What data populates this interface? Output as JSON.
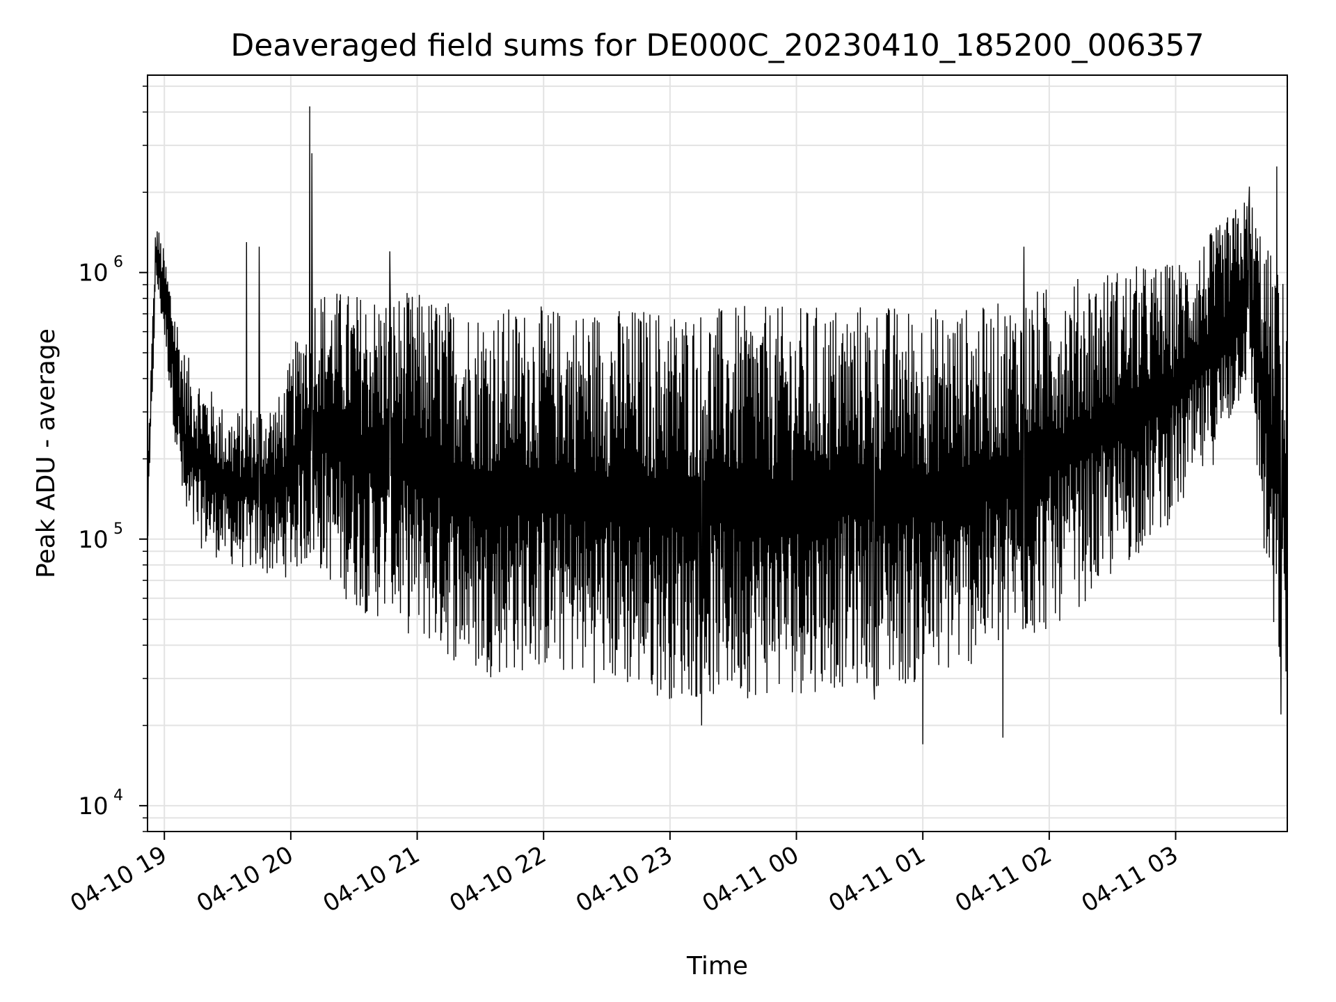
{
  "chart_data": {
    "type": "line",
    "title": "Deaveraged field sums for DE000C_20230410_185200_006357",
    "xlabel": "Time",
    "ylabel": "Peak ADU - average",
    "yscale": "log",
    "ylim": [
      8000,
      5500000
    ],
    "xlim": [
      "2023-04-10 18:52",
      "2023-04-11 03:53"
    ],
    "grid": true,
    "x_tick_labels": [
      "04-10 19",
      "04-10 20",
      "04-10 21",
      "04-10 22",
      "04-10 23",
      "04-11 00",
      "04-11 01",
      "04-11 02",
      "04-11 03"
    ],
    "y_tick_labels": [
      {
        "base": "10",
        "exp": "4",
        "value": 10000
      },
      {
        "base": "10",
        "exp": "5",
        "value": 100000
      },
      {
        "base": "10",
        "exp": "6",
        "value": 1000000
      }
    ],
    "series": [
      {
        "color": "#000000",
        "envelope": [
          {
            "x": "2023-04-10 18:52",
            "low": 80000,
            "high": 200000
          },
          {
            "x": "2023-04-10 18:56",
            "low": 900000,
            "high": 1600000
          },
          {
            "x": "2023-04-10 19:00",
            "low": 550000,
            "high": 1200000
          },
          {
            "x": "2023-04-10 19:10",
            "low": 100000,
            "high": 500000
          },
          {
            "x": "2023-04-10 19:30",
            "low": 80000,
            "high": 300000
          },
          {
            "x": "2023-04-10 19:55",
            "low": 70000,
            "high": 350000
          },
          {
            "x": "2023-04-10 20:10",
            "low": 80000,
            "high": 900000
          },
          {
            "x": "2023-04-10 20:30",
            "low": 55000,
            "high": 850000
          },
          {
            "x": "2023-04-10 21:00",
            "low": 42000,
            "high": 850000
          },
          {
            "x": "2023-04-10 21:30",
            "low": 30000,
            "high": 750000
          },
          {
            "x": "2023-04-10 22:00",
            "low": 32000,
            "high": 750000
          },
          {
            "x": "2023-04-10 22:30",
            "low": 28000,
            "high": 750000
          },
          {
            "x": "2023-04-10 23:00",
            "low": 25000,
            "high": 750000
          },
          {
            "x": "2023-04-10 23:30",
            "low": 25000,
            "high": 750000
          },
          {
            "x": "2023-04-11 00:00",
            "low": 26000,
            "high": 750000
          },
          {
            "x": "2023-04-11 00:30",
            "low": 28000,
            "high": 780000
          },
          {
            "x": "2023-04-11 01:00",
            "low": 28000,
            "high": 750000
          },
          {
            "x": "2023-04-11 01:30",
            "low": 35000,
            "high": 750000
          },
          {
            "x": "2023-04-11 02:00",
            "low": 45000,
            "high": 900000
          },
          {
            "x": "2023-04-11 02:30",
            "low": 70000,
            "high": 1050000
          },
          {
            "x": "2023-04-11 03:00",
            "low": 120000,
            "high": 1100000
          },
          {
            "x": "2023-04-11 03:20",
            "low": 200000,
            "high": 1500000
          },
          {
            "x": "2023-04-11 03:35",
            "low": 400000,
            "high": 2000000
          },
          {
            "x": "2023-04-11 03:45",
            "low": 40000,
            "high": 1200000
          },
          {
            "x": "2023-04-11 03:53",
            "low": 25000,
            "high": 900000
          }
        ],
        "spikes": [
          {
            "x": "2023-04-10 20:09",
            "y": 4200000
          },
          {
            "x": "2023-04-10 20:10",
            "y": 2800000
          },
          {
            "x": "2023-04-10 19:39",
            "y": 1300000
          },
          {
            "x": "2023-04-10 19:45",
            "y": 1250000
          },
          {
            "x": "2023-04-10 20:47",
            "y": 1200000
          },
          {
            "x": "2023-04-10 23:15",
            "y": 20000
          },
          {
            "x": "2023-04-11 00:37",
            "y": 25000
          },
          {
            "x": "2023-04-11 01:00",
            "y": 17000
          },
          {
            "x": "2023-04-11 01:38",
            "y": 18000
          },
          {
            "x": "2023-04-11 01:48",
            "y": 1250000
          },
          {
            "x": "2023-04-11 03:35",
            "y": 2100000
          },
          {
            "x": "2023-04-11 03:48",
            "y": 2500000
          },
          {
            "x": "2023-04-11 03:50",
            "y": 22000
          }
        ]
      }
    ]
  }
}
